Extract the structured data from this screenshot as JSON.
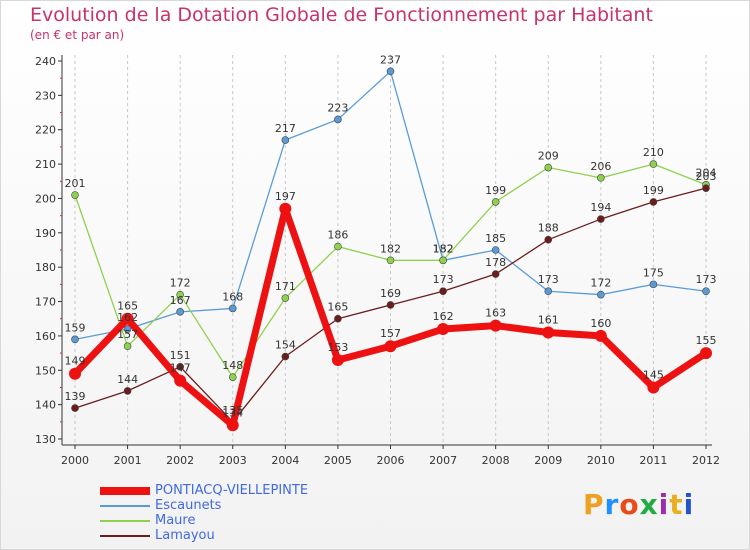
{
  "title": "Evolution de la Dotation Globale de Fonctionnement par Habitant",
  "subtitle": "(en € et par an)",
  "logo": {
    "text": "Proxiti",
    "colors": [
      "#f0a020",
      "#1e90ff",
      "#e84a1a",
      "#22aa44",
      "#9c2bb0",
      "#e8b020",
      "#2255cc"
    ]
  },
  "chart_data": {
    "type": "line",
    "title": "Evolution de la Dotation Globale de Fonctionnement par Habitant",
    "subtitle": "(en € et par an)",
    "xlabel": "",
    "ylabel": "",
    "x": [
      "2000",
      "2001",
      "2002",
      "2003",
      "2004",
      "2005",
      "2006",
      "2007",
      "2008",
      "2009",
      "2010",
      "2011",
      "2012"
    ],
    "ylim": [
      130,
      240
    ],
    "yticks": [
      130,
      140,
      150,
      160,
      170,
      180,
      190,
      200,
      210,
      220,
      230,
      240
    ],
    "grid": "vertical",
    "legend_position": "bottom-left",
    "series": [
      {
        "name": "PONTIACQ-VIELLEPINTE",
        "color": "#ee1111",
        "values": [
          149,
          165,
          147,
          134,
          197,
          153,
          157,
          162,
          163,
          161,
          160,
          145,
          155
        ]
      },
      {
        "name": "Escaunets",
        "color": "#5b9bd5",
        "values": [
          159,
          162,
          167,
          168,
          217,
          223,
          237,
          182,
          185,
          173,
          172,
          175,
          173
        ]
      },
      {
        "name": "Maure",
        "color": "#8fd14f",
        "values": [
          201,
          157,
          172,
          148,
          171,
          186,
          182,
          182,
          199,
          209,
          206,
          210,
          204
        ]
      },
      {
        "name": "Lamayou",
        "color": "#6b1d1d",
        "values": [
          139,
          144,
          151,
          135,
          154,
          165,
          169,
          173,
          178,
          188,
          194,
          199,
          203
        ]
      }
    ]
  }
}
